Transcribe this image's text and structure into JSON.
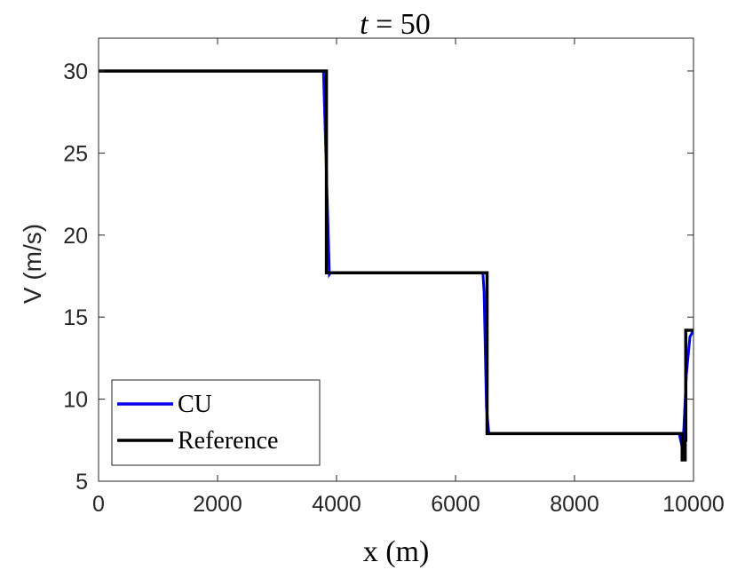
{
  "chart_data": {
    "type": "line",
    "title_var": "t",
    "title_eq": " = 50",
    "xlabel": "x (m)",
    "ylabel": "V (m/s)",
    "xlim": [
      0,
      10000
    ],
    "ylim": [
      5,
      32
    ],
    "xticks": [
      0,
      2000,
      4000,
      6000,
      8000,
      10000
    ],
    "yticks": [
      5,
      10,
      15,
      20,
      25,
      30
    ],
    "grid": false,
    "legend_position": "bottom-left",
    "series": [
      {
        "name": "CU",
        "color": "#0000ee",
        "x": [
          0,
          3780,
          3880,
          3900,
          6460,
          6480,
          6520,
          6560,
          9760,
          9820,
          9880,
          9940,
          10000
        ],
        "y": [
          30,
          30,
          17.6,
          17.7,
          17.7,
          16.5,
          9.5,
          7.9,
          7.9,
          6.9,
          11.5,
          13.8,
          14.2
        ]
      },
      {
        "name": "Reference",
        "color": "#000000",
        "x": [
          0,
          3830,
          3830,
          6530,
          6530,
          9810,
          9810,
          9860,
          9860,
          9870,
          9870,
          10000
        ],
        "y": [
          30,
          30,
          17.7,
          17.7,
          7.9,
          7.9,
          6.3,
          6.3,
          7.5,
          7.5,
          14.2,
          14.2
        ]
      }
    ]
  }
}
